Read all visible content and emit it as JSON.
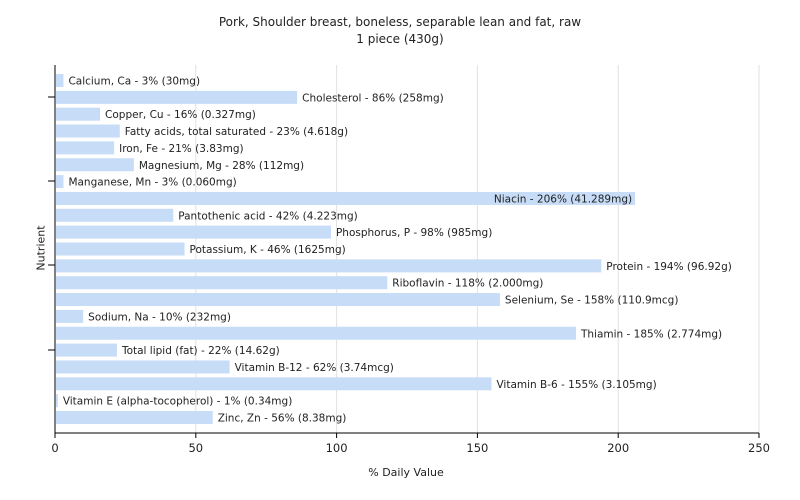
{
  "chart_data": {
    "type": "bar",
    "orientation": "horizontal",
    "title": "Pork, Shoulder breast, boneless, separable lean and fat, raw",
    "subtitle": "1 piece (430g)",
    "xlabel": "% Daily Value",
    "ylabel": "Nutrient",
    "xlim": [
      0,
      250
    ],
    "xticks": [
      0,
      50,
      100,
      150,
      200,
      250
    ],
    "grid": true,
    "bar_color": "#c6dcf7",
    "categories": [
      "Calcium, Ca",
      "Cholesterol",
      "Copper, Cu",
      "Fatty acids, total saturated",
      "Iron, Fe",
      "Magnesium, Mg",
      "Manganese, Mn",
      "Niacin",
      "Pantothenic acid",
      "Phosphorus, P",
      "Potassium, K",
      "Protein",
      "Riboflavin",
      "Selenium, Se",
      "Sodium, Na",
      "Thiamin",
      "Total lipid (fat)",
      "Vitamin B-12",
      "Vitamin B-6",
      "Vitamin E (alpha-tocopherol)",
      "Zinc, Zn"
    ],
    "values": [
      3,
      86,
      16,
      23,
      21,
      28,
      3,
      206,
      42,
      98,
      46,
      194,
      118,
      158,
      10,
      185,
      22,
      62,
      155,
      1,
      56
    ],
    "data_labels": [
      "Calcium, Ca - 3% (30mg)",
      "Cholesterol - 86% (258mg)",
      "Copper, Cu - 16% (0.327mg)",
      "Fatty acids, total saturated - 23% (4.618g)",
      "Iron, Fe - 21% (3.83mg)",
      "Magnesium, Mg - 28% (112mg)",
      "Manganese, Mn - 3% (0.060mg)",
      "Niacin - 206% (41.289mg)",
      "Pantothenic acid - 42% (4.223mg)",
      "Phosphorus, P - 98% (985mg)",
      "Potassium, K - 46% (1625mg)",
      "Protein - 194% (96.92g)",
      "Riboflavin - 118% (2.000mg)",
      "Selenium, Se - 158% (110.9mcg)",
      "Sodium, Na - 10% (232mg)",
      "Thiamin - 185% (2.774mg)",
      "Total lipid (fat) - 22% (14.62g)",
      "Vitamin B-12 - 62% (3.74mcg)",
      "Vitamin B-6 - 155% (3.105mg)",
      "Vitamin E (alpha-tocopherol) - 1% (0.34mg)",
      "Zinc, Zn - 56% (8.38mg)"
    ]
  }
}
